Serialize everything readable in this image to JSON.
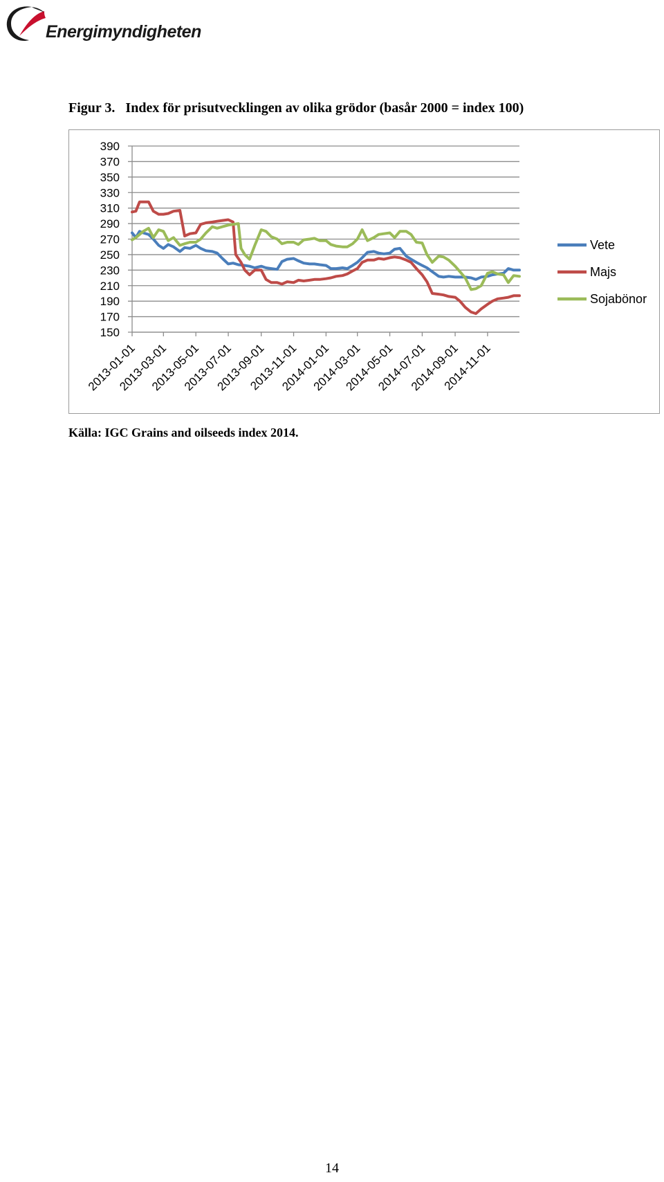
{
  "header": {
    "logo_text": "Energimyndigheten",
    "logo_icon": "energimyndigheten-swoosh-logo"
  },
  "figure": {
    "number": "Figur 3.",
    "title": "Index för prisutvecklingen av olika grödor (basår 2000 = index 100)"
  },
  "source": "Källa: IGC Grains and oilseeds index 2014.",
  "page_number": "14",
  "chart_data": {
    "type": "line",
    "title": "",
    "xlabel": "",
    "ylabel": "",
    "x_ticks": [
      "2013-01-01",
      "2013-03-01",
      "2013-05-01",
      "2013-07-01",
      "2013-09-01",
      "2013-11-01",
      "2014-01-01",
      "2014-03-01",
      "2014-05-01",
      "2014-07-01",
      "2014-09-01",
      "2014-11-01"
    ],
    "x_range": [
      "2013-01-01",
      "2014-12-31"
    ],
    "y_ticks": [
      390,
      370,
      350,
      330,
      310,
      290,
      270,
      250,
      230,
      210,
      190,
      170,
      150
    ],
    "ylim": [
      150,
      390
    ],
    "grid": "horizontal",
    "legend_position": "right",
    "series": [
      {
        "name": "Vete",
        "color": "#4a7ebb",
        "points": [
          [
            "2013-01-01",
            278
          ],
          [
            "2013-01-08",
            272
          ],
          [
            "2013-01-15",
            280
          ],
          [
            "2013-01-22",
            278
          ],
          [
            "2013-02-01",
            276
          ],
          [
            "2013-02-10",
            270
          ],
          [
            "2013-02-20",
            262
          ],
          [
            "2013-03-01",
            258
          ],
          [
            "2013-03-10",
            263
          ],
          [
            "2013-03-20",
            260
          ],
          [
            "2013-04-01",
            254
          ],
          [
            "2013-04-10",
            259
          ],
          [
            "2013-04-20",
            258
          ],
          [
            "2013-05-01",
            262
          ],
          [
            "2013-05-10",
            258
          ],
          [
            "2013-05-20",
            255
          ],
          [
            "2013-06-01",
            254
          ],
          [
            "2013-06-10",
            252
          ],
          [
            "2013-06-20",
            245
          ],
          [
            "2013-07-01",
            238
          ],
          [
            "2013-07-10",
            239
          ],
          [
            "2013-07-20",
            237
          ],
          [
            "2013-08-01",
            236
          ],
          [
            "2013-08-10",
            235
          ],
          [
            "2013-08-20",
            233
          ],
          [
            "2013-09-01",
            235
          ],
          [
            "2013-09-10",
            233
          ],
          [
            "2013-09-20",
            232
          ],
          [
            "2013-10-01",
            231
          ],
          [
            "2013-10-10",
            241
          ],
          [
            "2013-10-20",
            244
          ],
          [
            "2013-11-01",
            245
          ],
          [
            "2013-11-10",
            242
          ],
          [
            "2013-11-20",
            239
          ],
          [
            "2013-12-01",
            238
          ],
          [
            "2013-12-10",
            238
          ],
          [
            "2013-12-20",
            237
          ],
          [
            "2014-01-01",
            236
          ],
          [
            "2014-01-10",
            232
          ],
          [
            "2014-01-20",
            232
          ],
          [
            "2014-02-01",
            233
          ],
          [
            "2014-02-10",
            232
          ],
          [
            "2014-02-20",
            236
          ],
          [
            "2014-03-01",
            240
          ],
          [
            "2014-03-10",
            246
          ],
          [
            "2014-03-20",
            253
          ],
          [
            "2014-04-01",
            254
          ],
          [
            "2014-04-10",
            252
          ],
          [
            "2014-04-20",
            251
          ],
          [
            "2014-05-01",
            252
          ],
          [
            "2014-05-10",
            257
          ],
          [
            "2014-05-20",
            258
          ],
          [
            "2014-06-01",
            248
          ],
          [
            "2014-06-10",
            244
          ],
          [
            "2014-06-20",
            240
          ],
          [
            "2014-07-01",
            236
          ],
          [
            "2014-07-10",
            233
          ],
          [
            "2014-07-20",
            228
          ],
          [
            "2014-08-01",
            222
          ],
          [
            "2014-08-10",
            221
          ],
          [
            "2014-08-20",
            222
          ],
          [
            "2014-09-01",
            221
          ],
          [
            "2014-09-10",
            221
          ],
          [
            "2014-09-20",
            221
          ],
          [
            "2014-10-01",
            220
          ],
          [
            "2014-10-10",
            218
          ],
          [
            "2014-10-20",
            221
          ],
          [
            "2014-11-01",
            222
          ],
          [
            "2014-11-10",
            224
          ],
          [
            "2014-11-20",
            225
          ],
          [
            "2014-12-01",
            226
          ],
          [
            "2014-12-10",
            232
          ],
          [
            "2014-12-20",
            230
          ],
          [
            "2014-12-31",
            230
          ]
        ]
      },
      {
        "name": "Majs",
        "color": "#be4b48",
        "points": [
          [
            "2013-01-01",
            305
          ],
          [
            "2013-01-08",
            306
          ],
          [
            "2013-01-15",
            318
          ],
          [
            "2013-01-22",
            318
          ],
          [
            "2013-02-01",
            318
          ],
          [
            "2013-02-10",
            306
          ],
          [
            "2013-02-20",
            302
          ],
          [
            "2013-03-01",
            302
          ],
          [
            "2013-03-10",
            303
          ],
          [
            "2013-03-20",
            306
          ],
          [
            "2013-04-01",
            307
          ],
          [
            "2013-04-10",
            274
          ],
          [
            "2013-04-20",
            277
          ],
          [
            "2013-05-01",
            278
          ],
          [
            "2013-05-10",
            289
          ],
          [
            "2013-05-20",
            291
          ],
          [
            "2013-06-01",
            292
          ],
          [
            "2013-06-10",
            293
          ],
          [
            "2013-06-20",
            294
          ],
          [
            "2013-07-01",
            295
          ],
          [
            "2013-07-10",
            292
          ],
          [
            "2013-07-15",
            250
          ],
          [
            "2013-07-25",
            240
          ],
          [
            "2013-08-01",
            230
          ],
          [
            "2013-08-10",
            224
          ],
          [
            "2013-08-20",
            230
          ],
          [
            "2013-09-01",
            230
          ],
          [
            "2013-09-10",
            218
          ],
          [
            "2013-09-20",
            214
          ],
          [
            "2013-10-01",
            214
          ],
          [
            "2013-10-10",
            212
          ],
          [
            "2013-10-20",
            215
          ],
          [
            "2013-11-01",
            214
          ],
          [
            "2013-11-10",
            217
          ],
          [
            "2013-11-20",
            216
          ],
          [
            "2013-12-01",
            217
          ],
          [
            "2013-12-10",
            218
          ],
          [
            "2013-12-20",
            218
          ],
          [
            "2014-01-01",
            219
          ],
          [
            "2014-01-10",
            220
          ],
          [
            "2014-01-20",
            222
          ],
          [
            "2014-02-01",
            223
          ],
          [
            "2014-02-10",
            225
          ],
          [
            "2014-02-20",
            229
          ],
          [
            "2014-03-01",
            232
          ],
          [
            "2014-03-10",
            240
          ],
          [
            "2014-03-20",
            243
          ],
          [
            "2014-04-01",
            243
          ],
          [
            "2014-04-10",
            245
          ],
          [
            "2014-04-20",
            244
          ],
          [
            "2014-05-01",
            246
          ],
          [
            "2014-05-10",
            247
          ],
          [
            "2014-05-20",
            246
          ],
          [
            "2014-06-01",
            243
          ],
          [
            "2014-06-10",
            240
          ],
          [
            "2014-06-20",
            232
          ],
          [
            "2014-07-01",
            224
          ],
          [
            "2014-07-10",
            215
          ],
          [
            "2014-07-20",
            200
          ],
          [
            "2014-08-01",
            199
          ],
          [
            "2014-08-10",
            198
          ],
          [
            "2014-08-20",
            196
          ],
          [
            "2014-09-01",
            195
          ],
          [
            "2014-09-10",
            190
          ],
          [
            "2014-09-20",
            182
          ],
          [
            "2014-10-01",
            176
          ],
          [
            "2014-10-10",
            174
          ],
          [
            "2014-10-20",
            180
          ],
          [
            "2014-11-01",
            186
          ],
          [
            "2014-11-10",
            190
          ],
          [
            "2014-11-20",
            193
          ],
          [
            "2014-12-01",
            194
          ],
          [
            "2014-12-10",
            195
          ],
          [
            "2014-12-20",
            197
          ],
          [
            "2014-12-31",
            197
          ]
        ]
      },
      {
        "name": "Sojabönor",
        "color": "#9bbb59",
        "points": [
          [
            "2013-01-01",
            269
          ],
          [
            "2013-01-08",
            272
          ],
          [
            "2013-01-15",
            276
          ],
          [
            "2013-01-22",
            280
          ],
          [
            "2013-02-01",
            284
          ],
          [
            "2013-02-10",
            272
          ],
          [
            "2013-02-20",
            282
          ],
          [
            "2013-03-01",
            280
          ],
          [
            "2013-03-10",
            268
          ],
          [
            "2013-03-20",
            272
          ],
          [
            "2013-04-01",
            262
          ],
          [
            "2013-04-10",
            264
          ],
          [
            "2013-04-20",
            266
          ],
          [
            "2013-05-01",
            266
          ],
          [
            "2013-05-10",
            270
          ],
          [
            "2013-05-20",
            278
          ],
          [
            "2013-06-01",
            286
          ],
          [
            "2013-06-10",
            284
          ],
          [
            "2013-06-20",
            286
          ],
          [
            "2013-07-01",
            288
          ],
          [
            "2013-07-10",
            289
          ],
          [
            "2013-07-20",
            290
          ],
          [
            "2013-07-25",
            258
          ],
          [
            "2013-08-01",
            250
          ],
          [
            "2013-08-10",
            244
          ],
          [
            "2013-08-20",
            262
          ],
          [
            "2013-09-01",
            282
          ],
          [
            "2013-09-10",
            280
          ],
          [
            "2013-09-20",
            273
          ],
          [
            "2013-10-01",
            270
          ],
          [
            "2013-10-10",
            264
          ],
          [
            "2013-10-20",
            266
          ],
          [
            "2013-11-01",
            266
          ],
          [
            "2013-11-10",
            263
          ],
          [
            "2013-11-20",
            269
          ],
          [
            "2013-12-01",
            270
          ],
          [
            "2013-12-10",
            271
          ],
          [
            "2013-12-20",
            268
          ],
          [
            "2014-01-01",
            268
          ],
          [
            "2014-01-10",
            263
          ],
          [
            "2014-01-20",
            261
          ],
          [
            "2014-02-01",
            260
          ],
          [
            "2014-02-10",
            260
          ],
          [
            "2014-02-20",
            264
          ],
          [
            "2014-03-01",
            270
          ],
          [
            "2014-03-10",
            282
          ],
          [
            "2014-03-20",
            268
          ],
          [
            "2014-04-01",
            272
          ],
          [
            "2014-04-10",
            276
          ],
          [
            "2014-04-20",
            277
          ],
          [
            "2014-05-01",
            278
          ],
          [
            "2014-05-10",
            272
          ],
          [
            "2014-05-20",
            280
          ],
          [
            "2014-06-01",
            280
          ],
          [
            "2014-06-10",
            276
          ],
          [
            "2014-06-20",
            266
          ],
          [
            "2014-07-01",
            265
          ],
          [
            "2014-07-10",
            250
          ],
          [
            "2014-07-20",
            240
          ],
          [
            "2014-08-01",
            248
          ],
          [
            "2014-08-10",
            247
          ],
          [
            "2014-08-20",
            243
          ],
          [
            "2014-09-01",
            235
          ],
          [
            "2014-09-10",
            228
          ],
          [
            "2014-09-20",
            220
          ],
          [
            "2014-10-01",
            205
          ],
          [
            "2014-10-10",
            206
          ],
          [
            "2014-10-20",
            210
          ],
          [
            "2014-11-01",
            226
          ],
          [
            "2014-11-10",
            228
          ],
          [
            "2014-11-20",
            225
          ],
          [
            "2014-12-01",
            224
          ],
          [
            "2014-12-10",
            214
          ],
          [
            "2014-12-20",
            223
          ],
          [
            "2014-12-31",
            222
          ]
        ]
      }
    ]
  }
}
